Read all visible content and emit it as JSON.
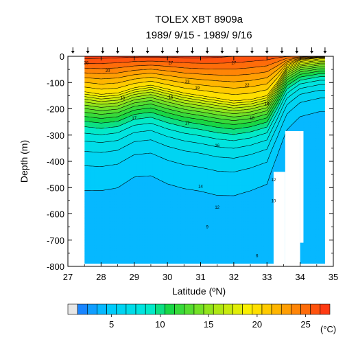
{
  "chart_data": {
    "type": "heatmap",
    "title": "TOLEX XBT 8909a",
    "subtitle": "1989/ 9/15 - 1989/ 9/16",
    "xlabel": "Latitude (ºN)",
    "ylabel": "Depth (m)",
    "xlim": [
      27,
      35
    ],
    "ylim": [
      -800,
      0
    ],
    "x_ticks": [
      "27",
      "28",
      "29",
      "30",
      "31",
      "32",
      "33",
      "34",
      "35"
    ],
    "y_ticks": [
      "0",
      "-100",
      "-200",
      "-300",
      "-400",
      "-500",
      "-600",
      "-700",
      "-800"
    ],
    "colorbar": {
      "min": 2,
      "max": 28,
      "step": 1,
      "tick_labels": [
        "5",
        "10",
        "15",
        "20",
        "25"
      ],
      "unit": "(°C)"
    },
    "station_latitudes": [
      27.15,
      27.6,
      28.05,
      28.5,
      28.95,
      29.4,
      29.85,
      30.3,
      30.75,
      31.2,
      31.65,
      32.1,
      32.55,
      33.0,
      33.45,
      33.9,
      34.35,
      34.75
    ],
    "sections": [
      {
        "x": 27.5,
        "sst": 27.5,
        "d20": 135,
        "grad": 0.0123
      },
      {
        "x": 28.0,
        "sst": 27.4,
        "d20": 145,
        "grad": 0.0126
      },
      {
        "x": 28.5,
        "sst": 27.3,
        "d20": 140,
        "grad": 0.0128
      },
      {
        "x": 29.0,
        "sst": 27.2,
        "d20": 120,
        "grad": 0.0136
      },
      {
        "x": 29.5,
        "sst": 27.2,
        "d20": 110,
        "grad": 0.0134
      },
      {
        "x": 30.0,
        "sst": 27.2,
        "d20": 125,
        "grad": 0.0128
      },
      {
        "x": 30.5,
        "sst": 27.3,
        "d20": 140,
        "grad": 0.0127
      },
      {
        "x": 31.0,
        "sst": 27.3,
        "d20": 150,
        "grad": 0.0127
      },
      {
        "x": 31.5,
        "sst": 27.2,
        "d20": 160,
        "grad": 0.0125
      },
      {
        "x": 32.0,
        "sst": 27.0,
        "d20": 170,
        "grad": 0.0128
      },
      {
        "x": 32.5,
        "sst": 26.8,
        "d20": 165,
        "grad": 0.0133
      },
      {
        "x": 33.0,
        "sst": 26.6,
        "d20": 150,
        "grad": 0.0137
      },
      {
        "x": 33.3,
        "sst": 26.4,
        "d20": 100,
        "grad": 0.0164
      },
      {
        "x": 33.6,
        "sst": 26.2,
        "d20": 40,
        "grad": 0.0192
      },
      {
        "x": 34.0,
        "sst": 26.0,
        "d20": 15,
        "grad": 0.0215
      },
      {
        "x": 34.6,
        "sst": 25.8,
        "d20": 5,
        "grad": 0.0225
      }
    ],
    "contour_labels": [
      {
        "x": 27.55,
        "d": 25,
        "t": "26"
      },
      {
        "x": 28.2,
        "d": 55,
        "t": "20"
      },
      {
        "x": 28.65,
        "d": 160,
        "t": "18"
      },
      {
        "x": 29.0,
        "d": 235,
        "t": "17"
      },
      {
        "x": 30.1,
        "d": 25,
        "t": "27"
      },
      {
        "x": 30.1,
        "d": 155,
        "t": "16"
      },
      {
        "x": 30.6,
        "d": 95,
        "t": "23"
      },
      {
        "x": 30.6,
        "d": 255,
        "t": "17"
      },
      {
        "x": 30.9,
        "d": 120,
        "t": "19"
      },
      {
        "x": 31.0,
        "d": 495,
        "t": "14"
      },
      {
        "x": 31.2,
        "d": 650,
        "t": "9"
      },
      {
        "x": 31.5,
        "d": 340,
        "t": "16"
      },
      {
        "x": 31.5,
        "d": 575,
        "t": "12"
      },
      {
        "x": 32.0,
        "d": 25,
        "t": "27"
      },
      {
        "x": 32.4,
        "d": 110,
        "t": "22"
      },
      {
        "x": 32.55,
        "d": 235,
        "t": "18"
      },
      {
        "x": 32.7,
        "d": 760,
        "t": "6"
      },
      {
        "x": 33.0,
        "d": 180,
        "t": "19"
      },
      {
        "x": 33.2,
        "d": 470,
        "t": "12"
      },
      {
        "x": 33.2,
        "d": 550,
        "t": "10"
      }
    ],
    "no_data": [
      {
        "x0": 33.2,
        "x1": 33.55,
        "d0": 440,
        "d1": 800
      },
      {
        "x0": 33.55,
        "x1": 34.0,
        "d0": 285,
        "d1": 800
      },
      {
        "x0": 34.0,
        "x1": 34.1,
        "d0": 285,
        "d1": 710
      }
    ]
  }
}
